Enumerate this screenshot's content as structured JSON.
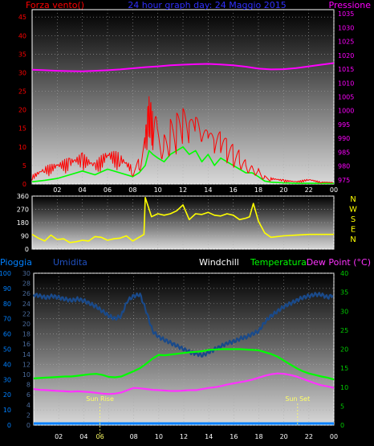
{
  "colors": {
    "wind": "#ff0000",
    "gust": "#00ff00",
    "pressure": "#ff00ff",
    "direction": "#ffff00",
    "rain": "#0080ff",
    "humidity": "#1a4a8a",
    "windchill": "#ffffff",
    "temperature": "#00ff00",
    "dewpoint": "#ff33ff",
    "sun": "#ffff66",
    "axis_left_bottom": "#0080ff",
    "axis_right_bottom": "#00cc00",
    "tick_bottom_left2": "#4a6a9a"
  },
  "chart_data": [
    {
      "type": "line",
      "title": "24 hour graph day: 24 Maggio 2015",
      "left_label": "Forza vento()",
      "right_label": "Pressione",
      "x_ticks": [
        "02",
        "04",
        "06",
        "08",
        "10",
        "12",
        "14",
        "16",
        "18",
        "20",
        "22",
        "00"
      ],
      "y_left_ticks": [
        "0",
        "5",
        "10",
        "15",
        "20",
        "25",
        "30",
        "35",
        "40",
        "45"
      ],
      "y_left_range": [
        0,
        47
      ],
      "y_right_ticks": [
        "975",
        "980",
        "985",
        "990",
        "995",
        "1000",
        "1005",
        "1010",
        "1015",
        "1020",
        "1025",
        "1030",
        "1035"
      ],
      "y_right_range": [
        973.5,
        1036.5
      ],
      "x_range": [
        0,
        24
      ],
      "series": [
        {
          "key": "pressure",
          "x": [
            0,
            1,
            2,
            3,
            4,
            5,
            6,
            7,
            8,
            9,
            10,
            11,
            12,
            13,
            14,
            15,
            16,
            17,
            18,
            19,
            20,
            21,
            22,
            23,
            24
          ],
          "values": [
            1014.8,
            1014.6,
            1014.4,
            1014.3,
            1014.2,
            1014.4,
            1014.6,
            1014.9,
            1015.3,
            1015.7,
            1016,
            1016.4,
            1016.6,
            1016.8,
            1016.9,
            1016.7,
            1016.4,
            1015.9,
            1015.2,
            1014.9,
            1015,
            1015.4,
            1016,
            1016.6,
            1017.2
          ]
        },
        {
          "key": "gust",
          "x": [
            0,
            1,
            2,
            3,
            4,
            5,
            6,
            7,
            8,
            8.5,
            9,
            9.3,
            9.6,
            10,
            10.5,
            11,
            11.5,
            12,
            12.5,
            13,
            13.5,
            14,
            14.5,
            15,
            15.5,
            16,
            16.5,
            17,
            17.5,
            18,
            18.5,
            19,
            20,
            21,
            22,
            23,
            24
          ],
          "values": [
            0.6,
            1,
            1.5,
            2.5,
            3.5,
            2.5,
            4,
            3,
            2,
            3,
            5,
            9,
            8,
            7,
            6,
            8,
            9,
            10,
            8,
            9,
            6,
            8,
            5,
            7,
            6,
            5,
            4,
            3,
            3,
            2,
            0.8,
            0.5,
            0.3,
            0.2,
            0.2,
            0.2,
            0.2
          ]
        },
        {
          "key": "wind",
          "x": [
            0,
            1,
            2,
            3,
            4,
            5,
            6,
            7,
            8,
            8.5,
            9,
            9.3,
            9.6,
            10,
            10.5,
            11,
            11.5,
            12,
            12.5,
            13,
            13.5,
            14,
            14.5,
            15,
            15.5,
            16,
            16.5,
            17,
            17.5,
            18,
            18.5,
            19,
            20,
            21,
            22,
            23,
            24
          ],
          "values": [
            2,
            4,
            5,
            6,
            7,
            5,
            8,
            7,
            4,
            6,
            12,
            20,
            17,
            14,
            12,
            15,
            16,
            17,
            14,
            16,
            11,
            13,
            10,
            12,
            10,
            9,
            8,
            6,
            5,
            4,
            2,
            1.5,
            1,
            0.6,
            1.2,
            0.5,
            0.4
          ]
        }
      ]
    },
    {
      "type": "line",
      "title": "",
      "right_labels": [
        "N",
        "W",
        "S",
        "E",
        "N"
      ],
      "y_ticks": [
        "0",
        "90",
        "180",
        "270",
        "360"
      ],
      "y_range": [
        0,
        360
      ],
      "x_range": [
        0,
        24
      ],
      "series": [
        {
          "key": "direction",
          "x": [
            0,
            0.5,
            1,
            1.5,
            2,
            2.5,
            3,
            3.5,
            4,
            4.5,
            5,
            5.5,
            6,
            6.5,
            7,
            7.5,
            8,
            8.5,
            8.9,
            9,
            9.5,
            10,
            10.5,
            11,
            11.5,
            12,
            12.5,
            13,
            13.5,
            14,
            14.5,
            15,
            15.5,
            16,
            16.5,
            17,
            17.3,
            17.6,
            18,
            18.5,
            19,
            20,
            21,
            22,
            23,
            24
          ],
          "values": [
            100,
            75,
            55,
            95,
            65,
            70,
            45,
            50,
            60,
            55,
            85,
            80,
            60,
            70,
            75,
            90,
            55,
            80,
            100,
            350,
            220,
            240,
            230,
            240,
            260,
            300,
            200,
            240,
            235,
            250,
            230,
            225,
            240,
            230,
            200,
            210,
            220,
            310,
            190,
            110,
            80,
            90,
            95,
            100,
            100,
            100
          ]
        }
      ]
    },
    {
      "type": "line",
      "title": "",
      "left_labels": [
        "Pioggia",
        "Umidita"
      ],
      "right_labels": [
        "Windchill",
        "Temperatura",
        "Dew Point (°C)"
      ],
      "y_left1_ticks": [
        "0",
        "10",
        "20",
        "30",
        "40",
        "50",
        "60",
        "70",
        "80",
        "90",
        "100"
      ],
      "y_left2_ticks": [
        "0",
        "2",
        "4",
        "6",
        "8",
        "10",
        "12",
        "14",
        "16",
        "18",
        "20",
        "22",
        "24",
        "26",
        "28",
        "30"
      ],
      "y_right_ticks": [
        "0",
        "5",
        "10",
        "15",
        "20",
        "25",
        "30",
        "35",
        "40"
      ],
      "y_range_humidity": [
        0,
        100
      ],
      "y_range_temp": [
        0,
        40
      ],
      "x_range": [
        0,
        24
      ],
      "x_ticks": [
        "02",
        "04",
        "06",
        "08",
        "10",
        "12",
        "14",
        "16",
        "18",
        "20",
        "22",
        "00"
      ],
      "sun_rise_label": "Sun Rise",
      "sun_set_label": "Sun Set",
      "sun_rise_x": 5.3,
      "sun_set_x": 21.1,
      "series": [
        {
          "key": "humidity",
          "x": [
            0,
            0.5,
            1,
            1.5,
            2,
            2.5,
            3,
            3.5,
            4,
            4.5,
            5,
            5.5,
            6,
            6.5,
            7,
            7.5,
            8,
            8.5,
            9,
            9.5,
            10,
            10.5,
            11,
            11.5,
            12,
            12.5,
            13,
            13.5,
            14,
            14.5,
            15,
            15.5,
            16,
            16.5,
            17,
            17.5,
            18,
            18.5,
            19,
            19.5,
            20,
            20.5,
            21,
            21.5,
            22,
            22.5,
            23,
            23.5,
            24
          ],
          "values": [
            86,
            85,
            84,
            85,
            84,
            83,
            82,
            83,
            82,
            80,
            78,
            75,
            72,
            70,
            72,
            82,
            85,
            86,
            75,
            62,
            58,
            56,
            54,
            52,
            50,
            48,
            47,
            46,
            48,
            50,
            52,
            54,
            55,
            57,
            58,
            60,
            62,
            68,
            72,
            75,
            78,
            80,
            82,
            84,
            85,
            86,
            86,
            84,
            86
          ]
        },
        {
          "key": "temperature",
          "x": [
            0,
            0.5,
            1,
            1.5,
            2,
            2.5,
            3,
            3.5,
            4,
            4.5,
            5,
            5.5,
            6,
            6.5,
            7,
            7.5,
            8,
            8.5,
            9,
            9.5,
            10,
            10.5,
            11,
            11.5,
            12,
            12.5,
            13,
            13.5,
            14,
            14.5,
            15,
            15.5,
            16,
            16.5,
            17,
            17.5,
            18,
            18.5,
            19,
            19.5,
            20,
            20.5,
            21,
            21.5,
            22,
            22.5,
            23,
            23.5,
            24
          ],
          "values": [
            12.3,
            12.4,
            12.5,
            12.6,
            12.7,
            12.8,
            12.8,
            13,
            13.2,
            13.4,
            13.5,
            13.2,
            12.7,
            12.6,
            12.8,
            13.5,
            14.2,
            15,
            16.2,
            17.5,
            18.5,
            18.4,
            18.6,
            18.8,
            19,
            19.2,
            19.3,
            19.5,
            19.8,
            19.9,
            20,
            20,
            20,
            20,
            19.9,
            19.8,
            19.7,
            19.2,
            18.7,
            18,
            17,
            16,
            15,
            14.2,
            13.6,
            13.2,
            12.8,
            12.5,
            12
          ]
        },
        {
          "key": "dewpoint",
          "x": [
            0,
            0.5,
            1,
            1.5,
            2,
            2.5,
            3,
            3.5,
            4,
            4.5,
            5,
            5.5,
            6,
            6.5,
            7,
            7.5,
            8,
            8.5,
            9,
            9.5,
            10,
            10.5,
            11,
            11.5,
            12,
            12.5,
            13,
            13.5,
            14,
            14.5,
            15,
            15.5,
            16,
            16.5,
            17,
            17.5,
            18,
            18.5,
            19,
            19.5,
            20,
            20.5,
            21,
            21.5,
            22,
            22.5,
            23,
            23.5,
            24
          ],
          "values": [
            9.5,
            9.3,
            9.2,
            9.1,
            9,
            8.9,
            8.8,
            8.9,
            8.8,
            8.7,
            8.5,
            8.3,
            8.2,
            8.3,
            8.6,
            9.2,
            9.8,
            9.7,
            9.5,
            9.3,
            9.2,
            9.1,
            9,
            9,
            9.1,
            9.2,
            9.2,
            9.5,
            9.8,
            10,
            10.3,
            10.7,
            11,
            11.3,
            11.6,
            12,
            12.5,
            13,
            13.4,
            13.6,
            13.5,
            13.2,
            12.8,
            12.2,
            11.6,
            11,
            10.5,
            10.2,
            9.8
          ]
        },
        {
          "key": "rain",
          "x": [
            0,
            24
          ],
          "values": [
            0,
            0
          ]
        }
      ]
    }
  ]
}
